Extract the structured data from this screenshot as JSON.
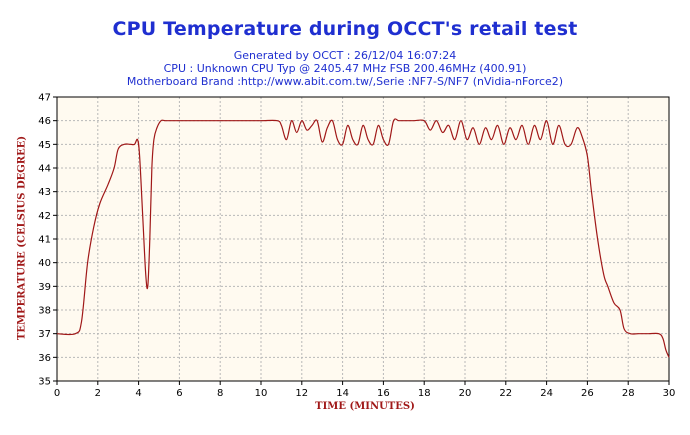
{
  "chart_data": {
    "type": "line",
    "title": "CPU Temperature during OCCT's retail test",
    "subtitles": [
      "Generated by OCCT : 26/12/04 16:07:24",
      "CPU : Unknown CPU Typ @ 2405.47 MHz FSB 200.46MHz (400.91)",
      "Motherboard Brand :http://www.abit.com.tw/,Serie :NF7-S/NF7 (nVidia-nForce2)"
    ],
    "xlabel": "TIME (MINUTES)",
    "ylabel": "TEMPERATURE (CELSIUS DEGREE)",
    "xlim": [
      0,
      30
    ],
    "ylim": [
      35,
      47
    ],
    "xticks": [
      0,
      2,
      4,
      6,
      8,
      10,
      12,
      14,
      16,
      18,
      20,
      22,
      24,
      26,
      28,
      30
    ],
    "yticks": [
      35,
      36,
      37,
      38,
      39,
      40,
      41,
      42,
      43,
      44,
      45,
      46,
      47
    ],
    "grid": true,
    "background": "#fffaf0",
    "line_color": "#a01818",
    "series": [
      {
        "x": [
          0,
          0.9,
          1.2,
          1.5,
          1.8,
          2.1,
          2.5,
          2.8,
          3.0,
          3.3,
          3.6,
          3.8,
          3.95,
          4.05,
          4.2,
          4.35,
          4.45,
          4.55,
          4.65,
          4.75,
          4.9,
          5.1,
          5.3,
          5.5,
          6,
          7,
          8,
          9,
          10,
          10.8,
          11.0,
          11.25,
          11.5,
          11.75,
          12.0,
          12.25,
          12.5,
          12.75,
          13.0,
          13.25,
          13.5,
          13.75,
          14.0,
          14.25,
          14.5,
          14.75,
          15.0,
          15.25,
          15.5,
          15.75,
          16.0,
          16.25,
          16.5,
          16.75,
          17.0,
          17.5,
          18.0,
          18.3,
          18.6,
          18.9,
          19.2,
          19.5,
          19.8,
          20.1,
          20.4,
          20.7,
          21.0,
          21.3,
          21.6,
          21.9,
          22.2,
          22.5,
          22.8,
          23.1,
          23.4,
          23.7,
          24.0,
          24.3,
          24.6,
          24.9,
          25.2,
          25.5,
          25.75,
          26.0,
          26.2,
          26.5,
          26.8,
          27.0,
          27.3,
          27.6,
          27.8,
          28.1,
          28.5,
          29.0,
          29.5,
          29.7,
          29.85,
          30.0
        ],
        "y": [
          37,
          37,
          37.5,
          40,
          41.5,
          42.5,
          43.3,
          44,
          44.8,
          45,
          45,
          45,
          45.2,
          44.5,
          42,
          39.5,
          39,
          41,
          44,
          45.2,
          45.7,
          46,
          46,
          46,
          46,
          46,
          46,
          46,
          46,
          46,
          45.8,
          45.2,
          46,
          45.5,
          46,
          45.6,
          45.8,
          46,
          45.1,
          45.7,
          46,
          45.2,
          45.0,
          45.8,
          45.2,
          45.0,
          45.8,
          45.2,
          45.0,
          45.8,
          45.2,
          45.0,
          46,
          46,
          46,
          46,
          46,
          45.6,
          46,
          45.5,
          45.8,
          45.2,
          46,
          45.2,
          45.7,
          45.0,
          45.7,
          45.2,
          45.8,
          45.0,
          45.7,
          45.2,
          45.8,
          45.0,
          45.8,
          45.2,
          46,
          45.0,
          45.8,
          45.0,
          45.0,
          45.7,
          45.3,
          44.5,
          43,
          41,
          39.5,
          39,
          38.3,
          38,
          37.2,
          37,
          37,
          37,
          37,
          36.8,
          36.3,
          36
        ]
      }
    ]
  }
}
